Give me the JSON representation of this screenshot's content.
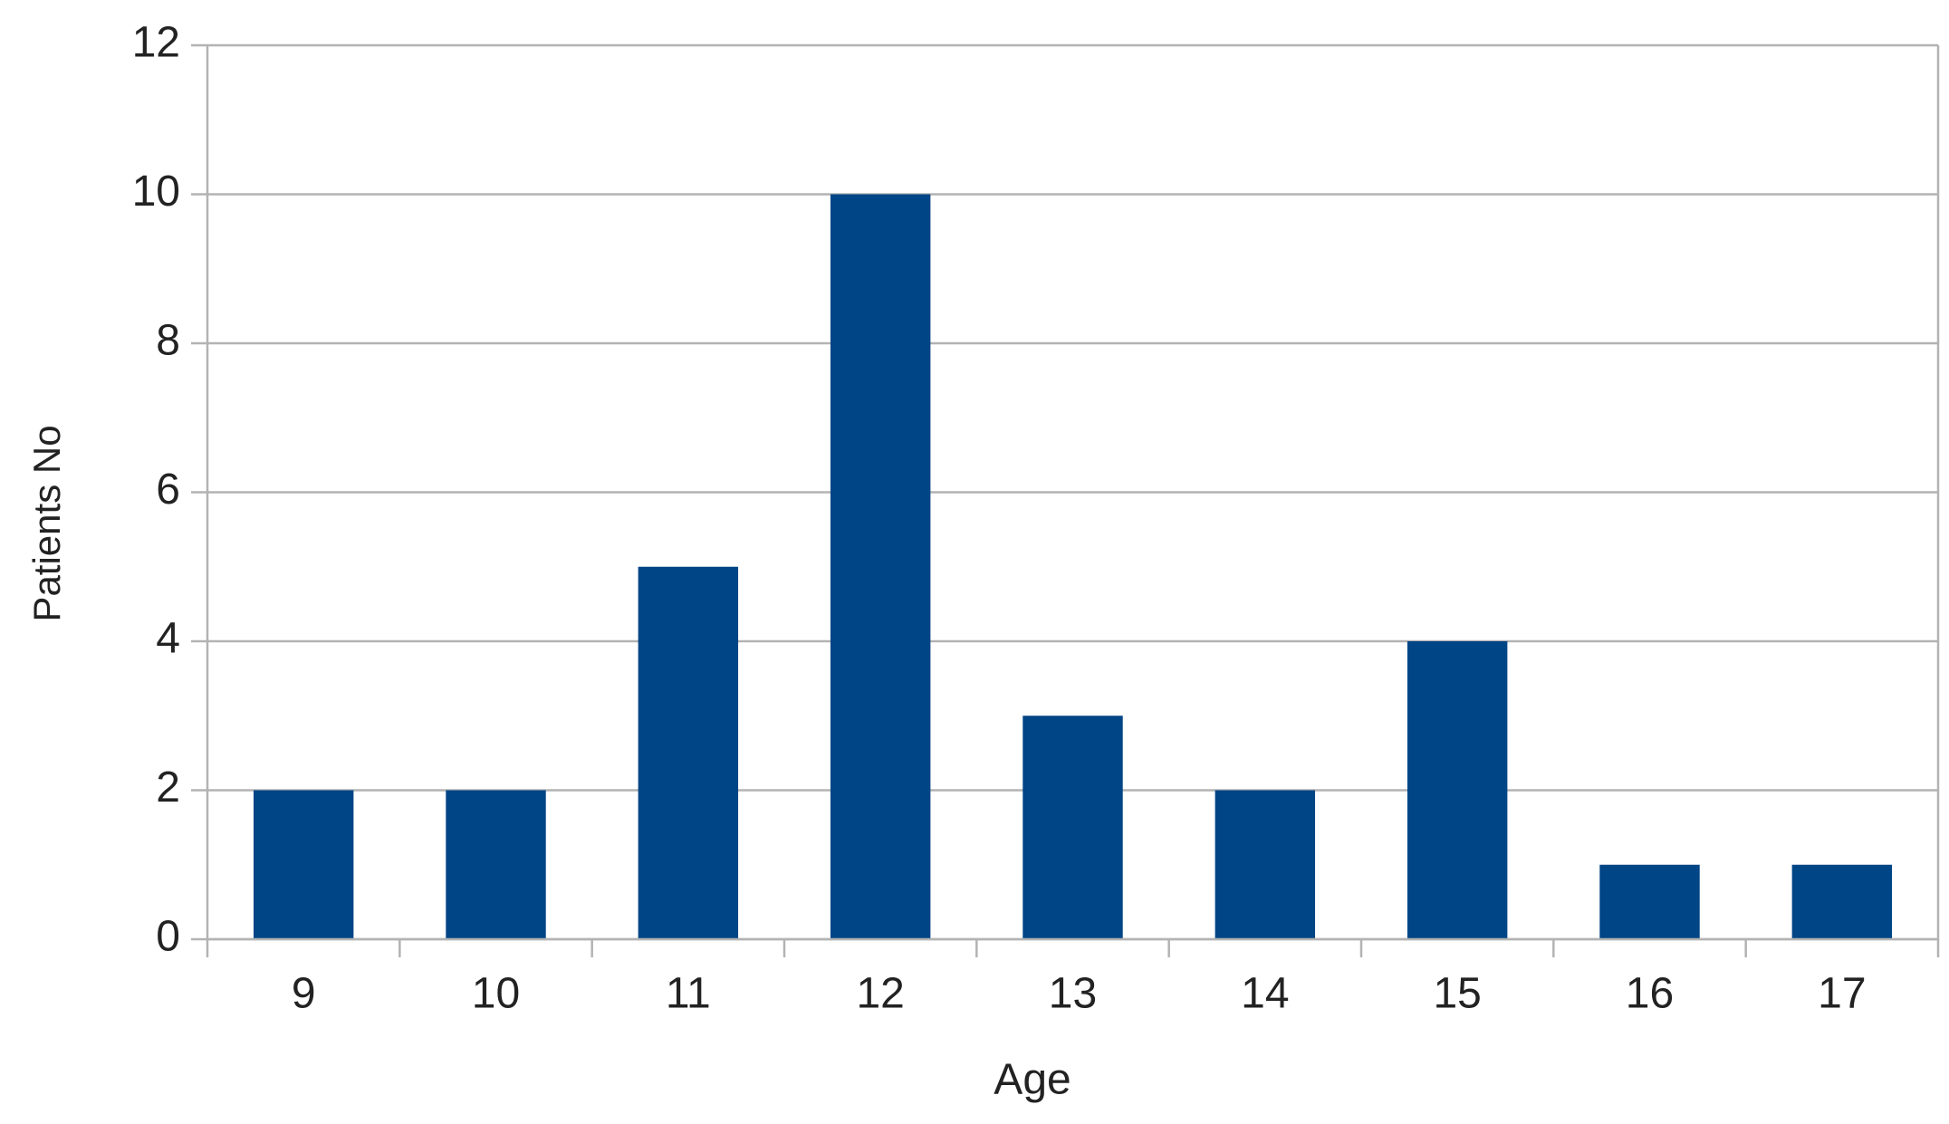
{
  "chart_data": {
    "type": "bar",
    "x_label": "Age",
    "y_label": "Patients No",
    "categories": [
      "9",
      "10",
      "11",
      "12",
      "13",
      "14",
      "15",
      "16",
      "17"
    ],
    "values": [
      2,
      2,
      5,
      10,
      3,
      2,
      4,
      1,
      1
    ],
    "color": "#004586",
    "ylim": [
      0,
      12
    ],
    "yticks": [
      0,
      2,
      4,
      6,
      8,
      10,
      12
    ],
    "grid": true
  }
}
